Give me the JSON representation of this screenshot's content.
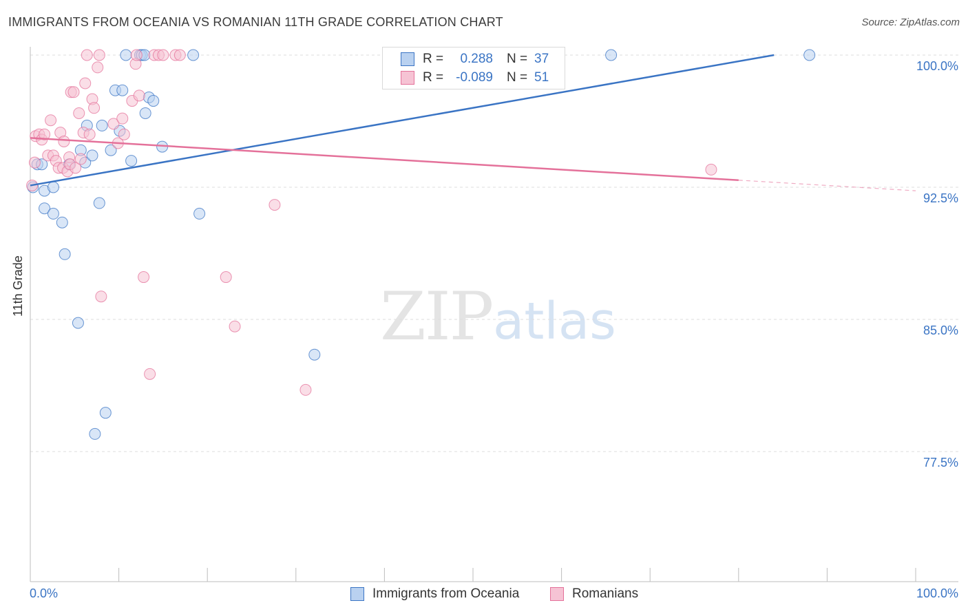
{
  "title": "IMMIGRANTS FROM OCEANIA VS ROMANIAN 11TH GRADE CORRELATION CHART",
  "source": "Source: ZipAtlas.com",
  "watermark": {
    "zip": "ZIP",
    "atlas": "atlas"
  },
  "colors": {
    "blue": "#3a74c4",
    "blue_fill": "#b9d1f0",
    "pink": "#e4719a",
    "pink_fill": "#f6c3d4",
    "grid": "#dedede"
  },
  "legend": {
    "r_label": "R =",
    "n_label": "N =",
    "series": [
      {
        "name": "Immigrants from Oceania",
        "r": "0.288",
        "n": "37"
      },
      {
        "name": "Romanians",
        "r": "-0.089",
        "n": "51"
      }
    ]
  },
  "chart_data": {
    "type": "scatter",
    "xlabel": "",
    "ylabel": "11th Grade",
    "xlim": [
      0,
      100
    ],
    "ylim": [
      70,
      100.5
    ],
    "x_tick_labels": [
      "0.0%",
      "100.0%"
    ],
    "y_ticks": [
      {
        "value": 100,
        "label": "100.0%"
      },
      {
        "value": 92.5,
        "label": "92.5%"
      },
      {
        "value": 85,
        "label": "85.0%"
      },
      {
        "value": 77.5,
        "label": "77.5%"
      }
    ],
    "grid": true,
    "legend_position": "top-center",
    "series": [
      {
        "name": "Immigrants from Oceania",
        "color": "#3a74c4",
        "trend": {
          "x": [
            0,
            84
          ],
          "y": [
            92.6,
            100.0
          ]
        },
        "points": [
          {
            "x": 0.3,
            "y": 92.5
          },
          {
            "x": 0.8,
            "y": 93.8
          },
          {
            "x": 1.3,
            "y": 93.8
          },
          {
            "x": 1.6,
            "y": 92.3
          },
          {
            "x": 1.6,
            "y": 91.3
          },
          {
            "x": 2.6,
            "y": 92.5
          },
          {
            "x": 2.6,
            "y": 91.0
          },
          {
            "x": 3.6,
            "y": 90.5
          },
          {
            "x": 3.9,
            "y": 88.7
          },
          {
            "x": 4.4,
            "y": 93.8
          },
          {
            "x": 5.4,
            "y": 84.8
          },
          {
            "x": 5.7,
            "y": 94.6
          },
          {
            "x": 6.2,
            "y": 93.9
          },
          {
            "x": 6.4,
            "y": 96.0
          },
          {
            "x": 7.0,
            "y": 94.3
          },
          {
            "x": 7.3,
            "y": 78.5
          },
          {
            "x": 7.8,
            "y": 91.6
          },
          {
            "x": 8.1,
            "y": 96.0
          },
          {
            "x": 8.5,
            "y": 79.7
          },
          {
            "x": 9.1,
            "y": 94.6
          },
          {
            "x": 9.6,
            "y": 98.0
          },
          {
            "x": 10.1,
            "y": 95.7
          },
          {
            "x": 10.4,
            "y": 98.0
          },
          {
            "x": 10.8,
            "y": 100.0
          },
          {
            "x": 11.4,
            "y": 94.0
          },
          {
            "x": 12.4,
            "y": 100.0
          },
          {
            "x": 12.6,
            "y": 100.0
          },
          {
            "x": 12.9,
            "y": 100.0
          },
          {
            "x": 13.0,
            "y": 96.7
          },
          {
            "x": 13.4,
            "y": 97.6
          },
          {
            "x": 13.9,
            "y": 97.4
          },
          {
            "x": 14.9,
            "y": 94.8
          },
          {
            "x": 18.4,
            "y": 100.0
          },
          {
            "x": 19.1,
            "y": 91.0
          },
          {
            "x": 32.1,
            "y": 83.0
          },
          {
            "x": 65.6,
            "y": 100.0
          },
          {
            "x": 88.0,
            "y": 100.0
          }
        ]
      },
      {
        "name": "Romanians",
        "color": "#e4719a",
        "trend": {
          "x": [
            0,
            80
          ],
          "y": [
            95.3,
            92.9
          ]
        },
        "trend_ext": {
          "x": [
            80,
            100
          ],
          "y": [
            92.9,
            92.3
          ]
        },
        "points": [
          {
            "x": 0.2,
            "y": 92.6
          },
          {
            "x": 0.5,
            "y": 93.9
          },
          {
            "x": 0.6,
            "y": 95.4
          },
          {
            "x": 1.0,
            "y": 95.5
          },
          {
            "x": 1.3,
            "y": 95.2
          },
          {
            "x": 1.6,
            "y": 95.5
          },
          {
            "x": 2.0,
            "y": 94.3
          },
          {
            "x": 2.3,
            "y": 96.3
          },
          {
            "x": 2.6,
            "y": 94.3
          },
          {
            "x": 2.9,
            "y": 94.0
          },
          {
            "x": 3.2,
            "y": 93.6
          },
          {
            "x": 3.4,
            "y": 95.6
          },
          {
            "x": 3.7,
            "y": 93.6
          },
          {
            "x": 3.8,
            "y": 95.1
          },
          {
            "x": 4.2,
            "y": 93.4
          },
          {
            "x": 4.4,
            "y": 94.2
          },
          {
            "x": 4.5,
            "y": 93.8
          },
          {
            "x": 4.6,
            "y": 97.9
          },
          {
            "x": 4.9,
            "y": 97.9
          },
          {
            "x": 5.1,
            "y": 93.6
          },
          {
            "x": 5.5,
            "y": 96.7
          },
          {
            "x": 5.7,
            "y": 94.1
          },
          {
            "x": 6.0,
            "y": 95.6
          },
          {
            "x": 6.2,
            "y": 98.4
          },
          {
            "x": 6.4,
            "y": 100.0
          },
          {
            "x": 6.7,
            "y": 95.5
          },
          {
            "x": 7.0,
            "y": 97.5
          },
          {
            "x": 7.2,
            "y": 97.0
          },
          {
            "x": 7.6,
            "y": 99.3
          },
          {
            "x": 7.8,
            "y": 100.0
          },
          {
            "x": 8.0,
            "y": 86.3
          },
          {
            "x": 9.4,
            "y": 96.1
          },
          {
            "x": 9.9,
            "y": 95.0
          },
          {
            "x": 10.4,
            "y": 96.4
          },
          {
            "x": 10.6,
            "y": 95.5
          },
          {
            "x": 11.5,
            "y": 97.4
          },
          {
            "x": 11.9,
            "y": 99.5
          },
          {
            "x": 12.0,
            "y": 100.0
          },
          {
            "x": 12.3,
            "y": 97.7
          },
          {
            "x": 12.8,
            "y": 87.4
          },
          {
            "x": 13.5,
            "y": 81.9
          },
          {
            "x": 14.0,
            "y": 100.0
          },
          {
            "x": 14.5,
            "y": 100.0
          },
          {
            "x": 15.0,
            "y": 100.0
          },
          {
            "x": 16.4,
            "y": 100.0
          },
          {
            "x": 16.9,
            "y": 100.0
          },
          {
            "x": 22.1,
            "y": 87.4
          },
          {
            "x": 23.1,
            "y": 84.6
          },
          {
            "x": 27.6,
            "y": 91.5
          },
          {
            "x": 31.1,
            "y": 81.0
          },
          {
            "x": 76.9,
            "y": 93.5
          }
        ]
      }
    ]
  }
}
